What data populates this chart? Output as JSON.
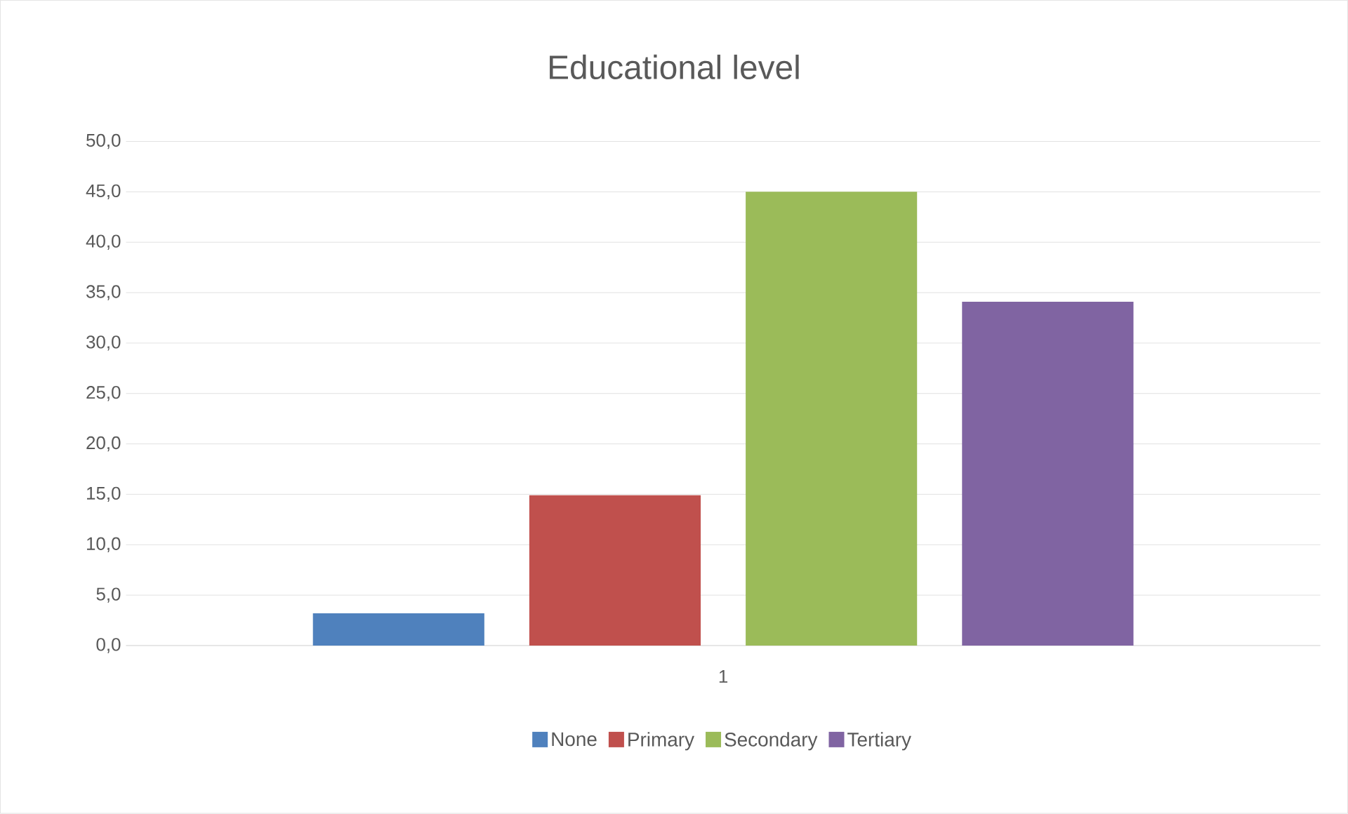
{
  "chart_data": {
    "type": "bar",
    "title": "Educational level",
    "categories": [
      "1"
    ],
    "series": [
      {
        "name": "None",
        "color": "#4f81bd",
        "values": [
          3.2
        ]
      },
      {
        "name": "Primary",
        "color": "#c0504d",
        "values": [
          14.9
        ]
      },
      {
        "name": "Secondary",
        "color": "#9bbb59",
        "values": [
          45.0
        ]
      },
      {
        "name": "Tertiary",
        "color": "#8064a2",
        "values": [
          34.1
        ]
      }
    ],
    "ylim": [
      0,
      50
    ],
    "yticks": [
      {
        "value": 0,
        "label": "0,0"
      },
      {
        "value": 5,
        "label": "5,0"
      },
      {
        "value": 10,
        "label": "10,0"
      },
      {
        "value": 15,
        "label": "15,0"
      },
      {
        "value": 20,
        "label": "20,0"
      },
      {
        "value": 25,
        "label": "25,0"
      },
      {
        "value": 30,
        "label": "30,0"
      },
      {
        "value": 35,
        "label": "35,0"
      },
      {
        "value": 40,
        "label": "40,0"
      },
      {
        "value": 45,
        "label": "45,0"
      },
      {
        "value": 50,
        "label": "50,0"
      }
    ],
    "grid": "y",
    "legend": "bottom"
  }
}
